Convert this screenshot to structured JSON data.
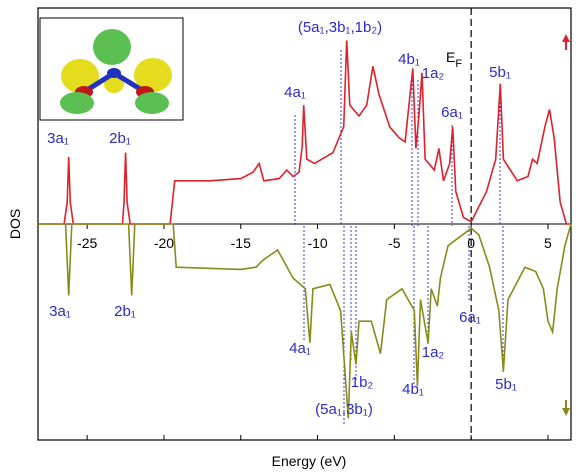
{
  "chart_data": {
    "type": "line",
    "xlabel": "Energy (eV)",
    "ylabel": "DOS",
    "xlim": [
      -28.2,
      6.5
    ],
    "ylim": [
      -1,
      1
    ],
    "xticks": [
      -25,
      -20,
      -15,
      -10,
      -5,
      0,
      5
    ],
    "fermi_level": 0,
    "fermi_label": {
      "main": "E",
      "sub": "F"
    },
    "series": [
      {
        "color": "#e0202a",
        "x": [
          -28.2,
          -26.5,
          -26.3,
          -26.2,
          -26.1,
          -25.9,
          -22.7,
          -22.6,
          -22.5,
          -22.4,
          -22.2,
          -19.6,
          -19.3,
          -17,
          -15,
          -14.2,
          -13.8,
          -13.5,
          -12.5,
          -12,
          -11.6,
          -11.2,
          -11,
          -10.9,
          -10.7,
          -10.2,
          -9,
          -8.3,
          -8.1,
          -7.9,
          -7.3,
          -6.8,
          -6.4,
          -6,
          -5.3,
          -4.7,
          -4.3,
          -3.8,
          -3.6,
          -3.4,
          -3.2,
          -3.0,
          -2.4,
          -2.1,
          -1.8,
          -1.4,
          -1.2,
          -1.0,
          -0.5,
          0,
          1,
          1.6,
          1.9,
          2.1,
          3,
          3.7,
          4,
          4.3,
          4.8,
          5.1,
          5.4,
          5.8,
          6.2,
          6.5
        ],
        "values": [
          0,
          0,
          0.1,
          0.31,
          0.1,
          0,
          0,
          0.1,
          0.33,
          0.1,
          0,
          0,
          0.2,
          0.2,
          0.21,
          0.24,
          0.28,
          0.2,
          0.21,
          0.25,
          0.22,
          0.24,
          0.36,
          0.55,
          0.3,
          0.28,
          0.33,
          0.45,
          0.85,
          0.55,
          0.5,
          0.55,
          0.73,
          0.6,
          0.45,
          0.4,
          0.38,
          0.72,
          0.35,
          0.5,
          0.7,
          0.3,
          0.25,
          0.35,
          0.2,
          0.28,
          0.45,
          0.15,
          0.03,
          0.01,
          0.15,
          0.3,
          0.65,
          0.3,
          0.2,
          0.22,
          0.3,
          0.28,
          0.45,
          0.53,
          0.4,
          0.1,
          0,
          0
        ]
      },
      {
        "color": "#8a8a1a",
        "x": [
          -28.2,
          -26.4,
          -26.2,
          -26.0,
          -22.3,
          -22.1,
          -21.9,
          -19.4,
          -19.2,
          -15,
          -14,
          -13.6,
          -13.2,
          -12.6,
          -11.6,
          -10.8,
          -10.5,
          -10.3,
          -9.2,
          -8.5,
          -8.0,
          -7.8,
          -7.5,
          -7.3,
          -6.5,
          -5.9,
          -5.5,
          -4.5,
          -3.7,
          -3.5,
          -3.3,
          -2.8,
          -2.6,
          -2.2,
          -2.0,
          -1.5,
          0,
          0.5,
          1.2,
          1.8,
          2.1,
          2.4,
          3.5,
          4.2,
          4.7,
          5.0,
          5.3,
          5.6,
          6.1,
          6.5
        ],
        "values": [
          0,
          0,
          -0.33,
          0,
          0,
          -0.33,
          0,
          0,
          -0.2,
          -0.21,
          -0.2,
          -0.17,
          -0.15,
          -0.12,
          -0.25,
          -0.3,
          -0.55,
          -0.3,
          -0.28,
          -0.4,
          -0.9,
          -0.5,
          -0.65,
          -0.45,
          -0.45,
          -0.6,
          -0.35,
          -0.3,
          -0.4,
          -0.75,
          -0.35,
          -0.55,
          -0.3,
          -0.38,
          -0.25,
          -0.1,
          -0.02,
          -0.05,
          -0.2,
          -0.4,
          -0.68,
          -0.35,
          -0.2,
          -0.22,
          -0.3,
          -0.45,
          -0.5,
          -0.3,
          -0.1,
          0
        ]
      }
    ],
    "annotations": [
      "3a₁",
      "2b₁",
      "4a₁",
      "(5a₁,3b₁,1b₂)",
      "4b₁",
      "1a₂",
      "6a₁",
      "5b₁",
      "3a₁",
      "2b₁",
      "4a₁",
      "1b₂",
      "(5a₁,3b₁)",
      "4b₁",
      "1a₂",
      "6a₁",
      "5b₁"
    ]
  }
}
